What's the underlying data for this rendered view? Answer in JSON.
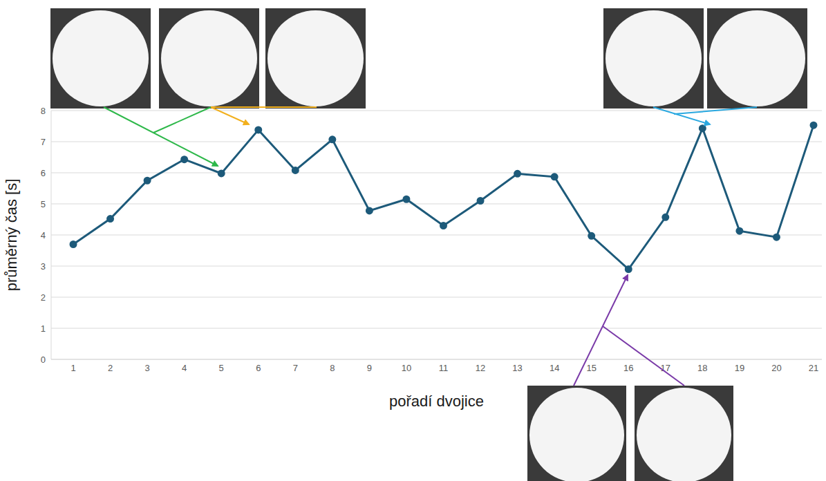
{
  "chart_data": {
    "type": "line",
    "x_label": "pořadí dvojice",
    "y_label": "průměrný čas [s]",
    "categories": [
      "1",
      "2",
      "3",
      "4",
      "5",
      "6",
      "7",
      "8",
      "9",
      "10",
      "11",
      "12",
      "13",
      "14",
      "15",
      "16",
      "17",
      "18",
      "19",
      "20",
      "21"
    ],
    "values": [
      3.7,
      4.52,
      5.75,
      6.43,
      5.98,
      7.38,
      6.08,
      7.07,
      4.78,
      5.15,
      4.3,
      5.1,
      5.97,
      5.87,
      3.97,
      2.9,
      4.57,
      7.43,
      4.13,
      3.93,
      7.53
    ],
    "color": "#1d5a7a",
    "ylim": [
      0,
      8
    ],
    "yticks": [
      0,
      1,
      2,
      3,
      4,
      5,
      6,
      7,
      8
    ],
    "grid": true,
    "marker": "circle",
    "line_style": "solid"
  }
}
